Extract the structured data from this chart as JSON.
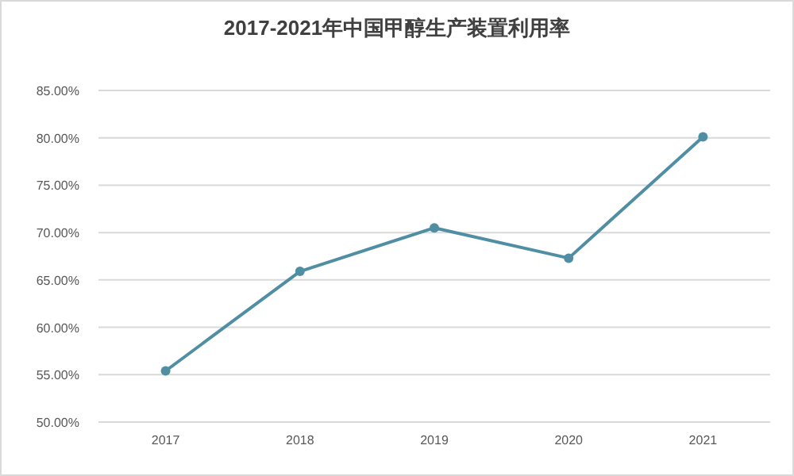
{
  "chart_data": {
    "type": "line",
    "title": "2017-2021年中国甲醇生产装置利用率",
    "categories": [
      "2017",
      "2018",
      "2019",
      "2020",
      "2021"
    ],
    "series": [
      {
        "color": "#4f8ea3",
        "values": [
          55.4,
          65.9,
          70.5,
          67.3,
          80.1
        ]
      }
    ],
    "ylim": [
      50,
      85
    ],
    "yticks": [
      {
        "value": 50,
        "label": "50.00%"
      },
      {
        "value": 55,
        "label": "55.00%"
      },
      {
        "value": 60,
        "label": "60.00%"
      },
      {
        "value": 65,
        "label": "65.00%"
      },
      {
        "value": 70,
        "label": "70.00%"
      },
      {
        "value": 75,
        "label": "75.00%"
      },
      {
        "value": 80,
        "label": "80.00%"
      },
      {
        "value": 85,
        "label": "85.00%"
      }
    ],
    "grid": "y",
    "marker": "circle",
    "line_style": "solid"
  }
}
